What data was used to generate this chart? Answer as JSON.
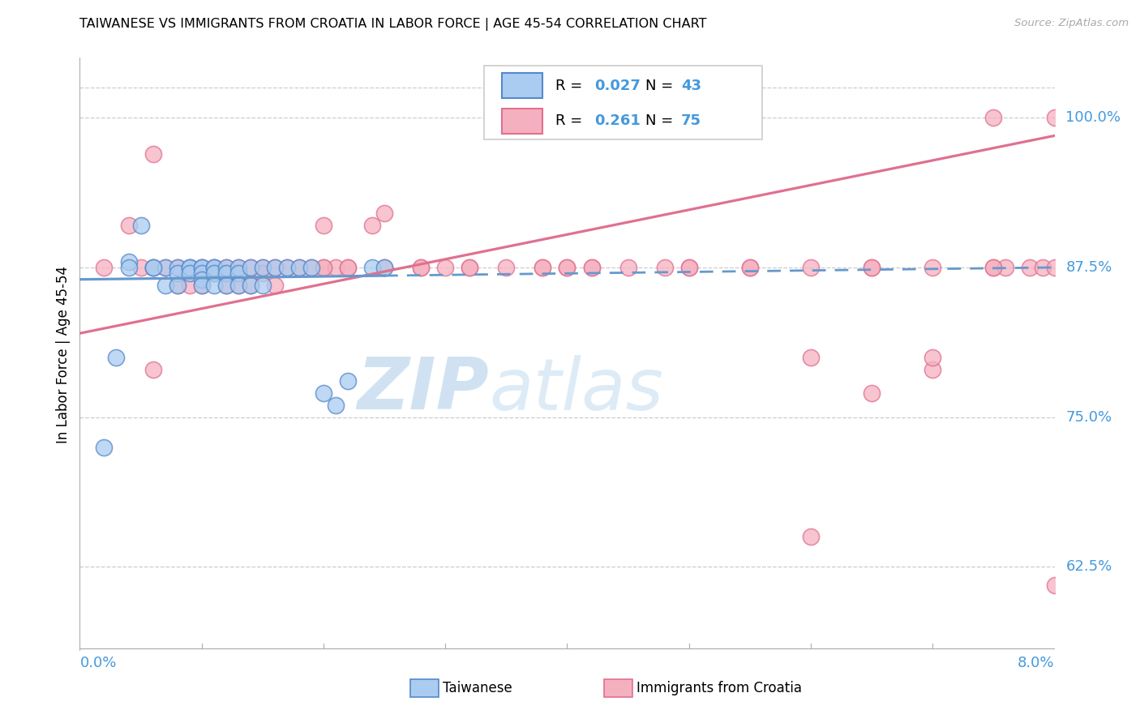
{
  "title": "TAIWANESE VS IMMIGRANTS FROM CROATIA IN LABOR FORCE | AGE 45-54 CORRELATION CHART",
  "source": "Source: ZipAtlas.com",
  "ylabel": "In Labor Force | Age 45-54",
  "xmin": 0.0,
  "xmax": 0.08,
  "ymin": 0.555,
  "ymax": 1.05,
  "yticks": [
    0.625,
    0.75,
    0.875,
    1.0
  ],
  "ytick_labels": [
    "62.5%",
    "75.0%",
    "87.5%",
    "100.0%"
  ],
  "watermark_zip": "ZIP",
  "watermark_atlas": "atlas",
  "r_taiwanese": "0.027",
  "n_taiwanese": "43",
  "r_croatia": "0.261",
  "n_croatia": "75",
  "color_taiwanese_fill": "#aaccf0",
  "color_taiwanese_edge": "#5588cc",
  "color_croatia_fill": "#f5b0c0",
  "color_croatia_edge": "#e07090",
  "color_trend_taiwanese": "#6699cc",
  "color_trend_croatia": "#e07090",
  "color_axis_text": "#4499dd",
  "color_grid": "#cccccc",
  "tw_x": [
    0.002,
    0.004,
    0.005,
    0.006,
    0.007,
    0.007,
    0.008,
    0.008,
    0.008,
    0.009,
    0.009,
    0.009,
    0.01,
    0.01,
    0.01,
    0.01,
    0.01,
    0.011,
    0.011,
    0.011,
    0.011,
    0.012,
    0.012,
    0.012,
    0.013,
    0.013,
    0.013,
    0.014,
    0.014,
    0.015,
    0.015,
    0.016,
    0.017,
    0.018,
    0.019,
    0.02,
    0.021,
    0.022,
    0.024,
    0.025,
    0.003,
    0.004,
    0.006
  ],
  "tw_y": [
    0.725,
    0.88,
    0.91,
    0.875,
    0.875,
    0.86,
    0.875,
    0.87,
    0.86,
    0.875,
    0.875,
    0.87,
    0.875,
    0.875,
    0.87,
    0.865,
    0.86,
    0.875,
    0.875,
    0.87,
    0.86,
    0.875,
    0.87,
    0.86,
    0.875,
    0.87,
    0.86,
    0.875,
    0.86,
    0.875,
    0.86,
    0.875,
    0.875,
    0.875,
    0.875,
    0.77,
    0.76,
    0.78,
    0.875,
    0.875,
    0.8,
    0.875,
    0.875
  ],
  "cr_x": [
    0.002,
    0.004,
    0.005,
    0.006,
    0.006,
    0.007,
    0.008,
    0.008,
    0.009,
    0.009,
    0.01,
    0.01,
    0.01,
    0.011,
    0.011,
    0.012,
    0.012,
    0.012,
    0.013,
    0.013,
    0.014,
    0.014,
    0.015,
    0.015,
    0.016,
    0.016,
    0.017,
    0.018,
    0.019,
    0.02,
    0.02,
    0.021,
    0.022,
    0.024,
    0.025,
    0.028,
    0.03,
    0.032,
    0.035,
    0.038,
    0.04,
    0.042,
    0.048,
    0.05,
    0.055,
    0.06,
    0.06,
    0.065,
    0.065,
    0.07,
    0.07,
    0.075,
    0.075,
    0.076,
    0.078,
    0.079,
    0.08,
    0.08,
    0.006,
    0.02,
    0.022,
    0.025,
    0.028,
    0.032,
    0.038,
    0.04,
    0.042,
    0.045,
    0.05,
    0.055,
    0.06,
    0.065,
    0.07,
    0.075,
    0.08
  ],
  "cr_y": [
    0.875,
    0.91,
    0.875,
    0.875,
    0.97,
    0.875,
    0.875,
    0.86,
    0.875,
    0.86,
    0.875,
    0.87,
    0.86,
    0.875,
    0.87,
    0.875,
    0.87,
    0.86,
    0.875,
    0.86,
    0.875,
    0.86,
    0.875,
    0.87,
    0.875,
    0.86,
    0.875,
    0.875,
    0.875,
    0.875,
    0.91,
    0.875,
    0.875,
    0.91,
    0.92,
    0.875,
    0.875,
    0.875,
    0.875,
    0.875,
    0.875,
    0.875,
    0.875,
    0.875,
    0.875,
    0.875,
    0.65,
    0.875,
    0.77,
    0.875,
    0.79,
    0.875,
    1.0,
    0.875,
    0.875,
    0.875,
    0.875,
    1.0,
    0.79,
    0.875,
    0.875,
    0.875,
    0.875,
    0.875,
    0.875,
    0.875,
    0.875,
    0.875,
    0.875,
    0.875,
    0.8,
    0.875,
    0.8,
    0.875,
    0.61
  ]
}
